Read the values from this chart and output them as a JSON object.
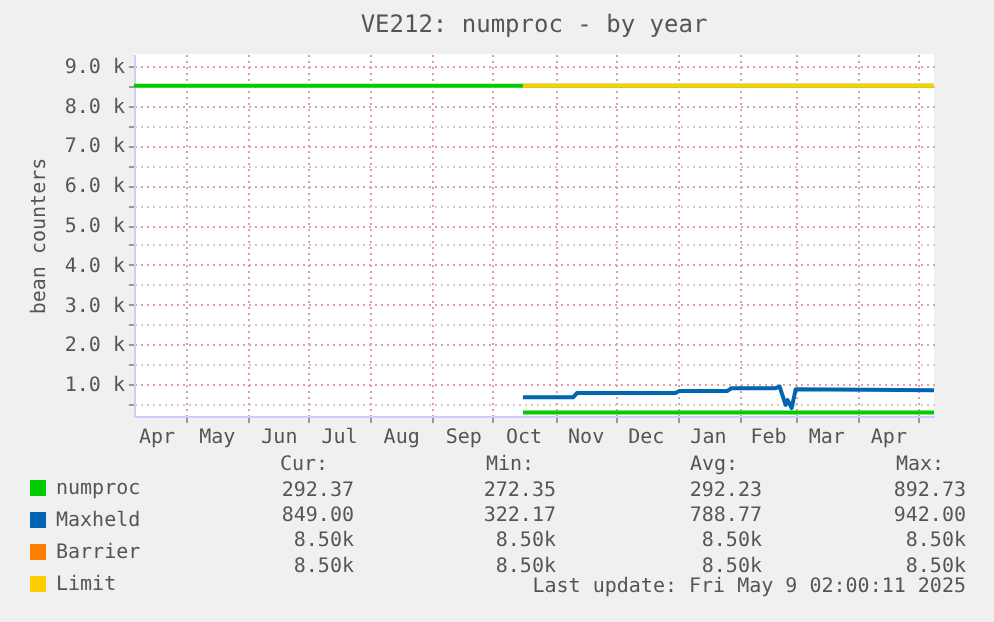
{
  "chart_data": {
    "type": "line",
    "title": "VE212: numproc - by year",
    "ylabel": "bean counters",
    "xlim": [
      "2024-04-05",
      "2025-05-09"
    ],
    "ylim": [
      200,
      9300
    ],
    "xticks": [
      {
        "value": "2024-04-16",
        "label": "Apr"
      },
      {
        "value": "2024-05-01",
        "label": null
      },
      {
        "value": "2024-05-16",
        "label": "May"
      },
      {
        "value": "2024-06-01",
        "label": null
      },
      {
        "value": "2024-06-16",
        "label": "Jun"
      },
      {
        "value": "2024-07-01",
        "label": null
      },
      {
        "value": "2024-07-16",
        "label": "Jul"
      },
      {
        "value": "2024-08-01",
        "label": null
      },
      {
        "value": "2024-08-16",
        "label": "Aug"
      },
      {
        "value": "2024-09-01",
        "label": null
      },
      {
        "value": "2024-09-16",
        "label": "Sep"
      },
      {
        "value": "2024-10-01",
        "label": null
      },
      {
        "value": "2024-10-16",
        "label": "Oct"
      },
      {
        "value": "2024-11-01",
        "label": null
      },
      {
        "value": "2024-11-16",
        "label": "Nov"
      },
      {
        "value": "2024-12-01",
        "label": null
      },
      {
        "value": "2024-12-16",
        "label": "Dec"
      },
      {
        "value": "2025-01-01",
        "label": null
      },
      {
        "value": "2025-01-16",
        "label": "Jan"
      },
      {
        "value": "2025-02-01",
        "label": null
      },
      {
        "value": "2025-02-15",
        "label": "Feb"
      },
      {
        "value": "2025-03-01",
        "label": null
      },
      {
        "value": "2025-03-16",
        "label": "Mar"
      },
      {
        "value": "2025-04-01",
        "label": null
      },
      {
        "value": "2025-04-16",
        "label": "Apr"
      },
      {
        "value": "2025-05-01",
        "label": null
      }
    ],
    "yticks": [
      {
        "value": 500,
        "label": null
      },
      {
        "value": 1000,
        "label": "1.0 k"
      },
      {
        "value": 1500,
        "label": null
      },
      {
        "value": 2000,
        "label": "2.0 k"
      },
      {
        "value": 2500,
        "label": null
      },
      {
        "value": 3000,
        "label": "3.0 k"
      },
      {
        "value": 3500,
        "label": null
      },
      {
        "value": 4000,
        "label": "4.0 k"
      },
      {
        "value": 4500,
        "label": null
      },
      {
        "value": 5000,
        "label": "5.0 k"
      },
      {
        "value": 5500,
        "label": null
      },
      {
        "value": 6000,
        "label": "6.0 k"
      },
      {
        "value": 6500,
        "label": null
      },
      {
        "value": 7000,
        "label": "7.0 k"
      },
      {
        "value": 7500,
        "label": null
      },
      {
        "value": 8000,
        "label": "8.0 k"
      },
      {
        "value": 8500,
        "label": null
      },
      {
        "value": 9000,
        "label": "9.0 k"
      }
    ],
    "grid": true,
    "legend": "bottom left",
    "marker": "none",
    "line_style": "solid",
    "ref_lines": [
      {
        "axis": "y",
        "value": 8500,
        "color": "#00cc00"
      }
    ],
    "series": [
      {
        "name": "numproc",
        "color": "#00cc00",
        "x": [
          "2024-10-16",
          "2025-05-09"
        ],
        "values": [
          290,
          290
        ]
      },
      {
        "name": "Maxheld",
        "color": "#0066b3",
        "x": [
          "2024-10-16",
          "2024-11-10",
          "2024-11-12",
          "2024-12-31",
          "2025-01-02",
          "2025-01-26",
          "2025-01-28",
          "2025-02-19",
          "2025-02-21",
          "2025-02-24",
          "2025-02-25",
          "2025-02-27",
          "2025-03-01",
          "2025-05-09"
        ],
        "values": [
          670,
          670,
          780,
          780,
          830,
          830,
          900,
          900,
          940,
          480,
          600,
          400,
          870,
          850
        ]
      },
      {
        "name": "Barrier",
        "color": "#ff8000"
      },
      {
        "name": "Limit",
        "color": "#ffcc00",
        "x": [
          "2024-10-16",
          "2025-05-09"
        ],
        "values": [
          8500,
          8500
        ]
      }
    ],
    "annotations": [
      "Cur:",
      "Min:",
      "Avg:",
      "Max:",
      "292.37",
      "272.35",
      "292.23",
      "892.73",
      "849.00",
      "322.17",
      "788.77",
      "942.00",
      "8.50k",
      "8.50k",
      "8.50k",
      "8.50k",
      "8.50k",
      "8.50k",
      "8.50k",
      "8.50k",
      "Last update: Fri May  9 02:00:11 2025"
    ]
  }
}
